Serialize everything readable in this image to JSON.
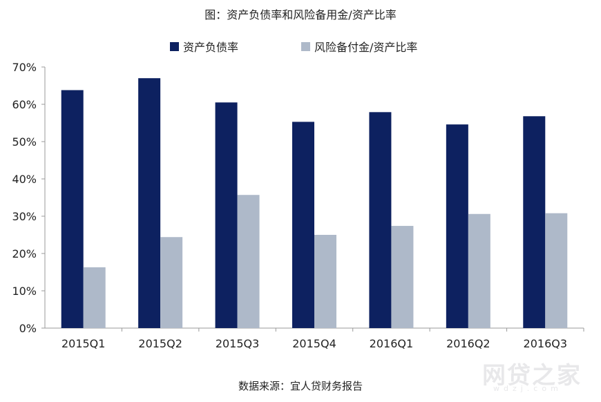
{
  "chart_data": {
    "type": "bar",
    "title": "图：资产负债率和风险备用金/资产比率",
    "source": "数据来源：宜人贷财务报告",
    "categories": [
      "2015Q1",
      "2015Q2",
      "2015Q3",
      "2015Q4",
      "2016Q1",
      "2016Q2",
      "2016Q3"
    ],
    "series": [
      {
        "name": "资产负债率",
        "color": "#0d2160",
        "values": [
          63.8,
          67.0,
          60.5,
          55.3,
          57.9,
          54.6,
          56.8
        ]
      },
      {
        "name": "风险备付金/资产比率",
        "color": "#aeb9c9",
        "values": [
          16.3,
          24.4,
          35.7,
          25.0,
          27.4,
          30.6,
          30.8
        ]
      }
    ],
    "yticks": [
      "0%",
      "10%",
      "20%",
      "30%",
      "40%",
      "50%",
      "60%",
      "70%"
    ],
    "ylim": [
      0,
      70
    ],
    "grid": false,
    "legend_position": "top"
  },
  "watermark": {
    "text": "网贷之家",
    "sub": "wdzj.com"
  }
}
